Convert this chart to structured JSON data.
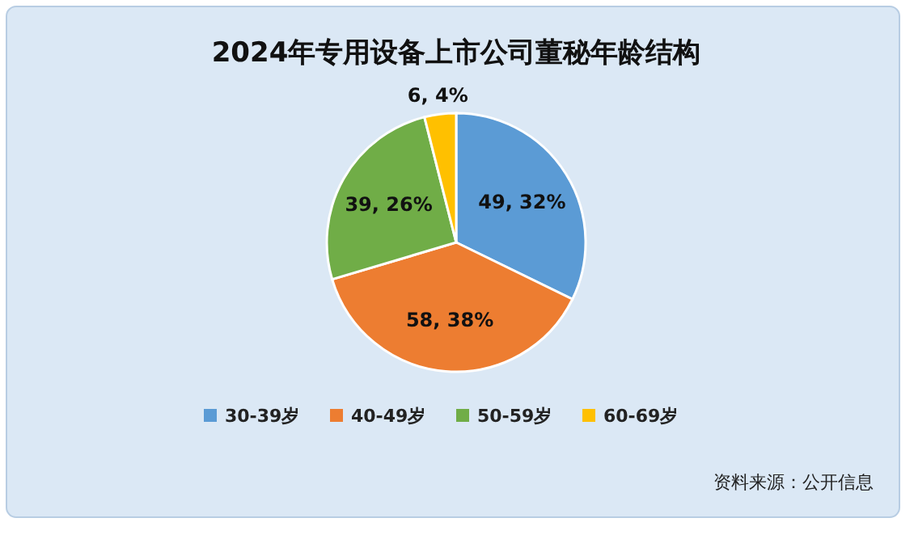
{
  "chart_data": {
    "type": "pie",
    "title": "2024年专用设备上市公司董秘年龄结构",
    "categories": [
      "30-39岁",
      "40-49岁",
      "50-59岁",
      "60-69岁"
    ],
    "values": [
      49,
      58,
      39,
      6
    ],
    "colors": [
      "#5b9bd5",
      "#ed7d31",
      "#70ad47",
      "#ffc000"
    ],
    "value_labels": [
      "49, 32%",
      "58, 38%",
      "39, 26%",
      "6, 4%"
    ],
    "legend": "bottom",
    "annotations": [
      "资料来源：公开信息"
    ]
  }
}
